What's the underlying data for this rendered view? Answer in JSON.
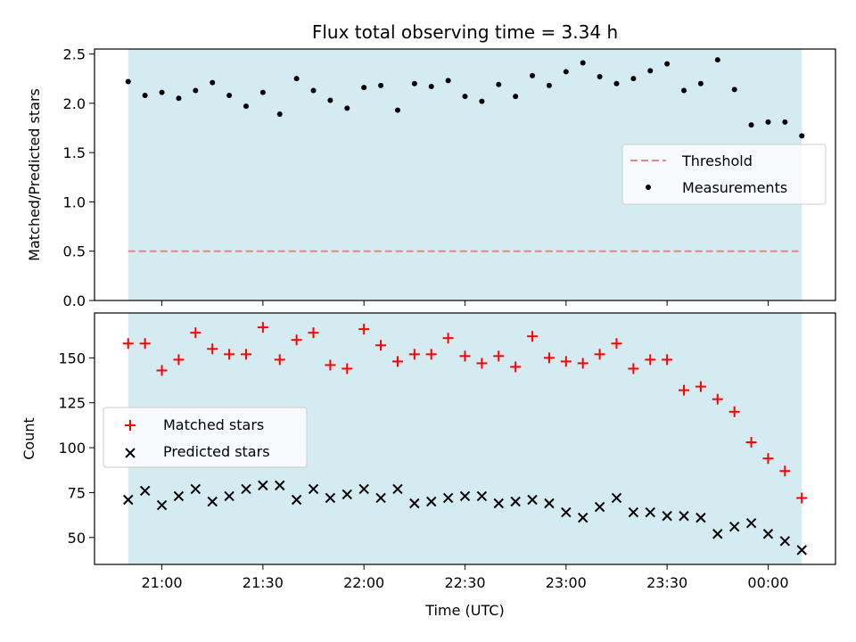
{
  "chart_data": [
    {
      "type": "scatter",
      "title": "Flux total observing time = 3.34 h",
      "ylabel": "Matched/Predicted stars",
      "xlabel": "",
      "ylim": [
        0,
        2.55
      ],
      "yticks": [
        "0.0",
        "0.5",
        "1.0",
        "1.5",
        "2.0",
        "2.5"
      ],
      "shaded_span": [
        "20:50",
        "00:10"
      ],
      "shade_color": "#add8e6",
      "threshold": {
        "name": "Threshold",
        "value": 0.5,
        "color": "#f08080",
        "style": "dashed"
      },
      "legend_position": "center-right",
      "series": [
        {
          "name": "Measurements",
          "color": "#000000",
          "marker": "dot",
          "x": [
            "20:50",
            "20:55",
            "21:00",
            "21:05",
            "21:10",
            "21:15",
            "21:20",
            "21:25",
            "21:30",
            "21:35",
            "21:40",
            "21:45",
            "21:50",
            "21:55",
            "22:00",
            "22:05",
            "22:10",
            "22:15",
            "22:20",
            "22:25",
            "22:30",
            "22:35",
            "22:40",
            "22:45",
            "22:50",
            "22:55",
            "23:00",
            "23:05",
            "23:10",
            "23:15",
            "23:20",
            "23:25",
            "23:30",
            "23:35",
            "23:40",
            "23:45",
            "23:50",
            "23:55",
            "00:00",
            "00:05",
            "00:10"
          ],
          "values": [
            2.22,
            2.08,
            2.11,
            2.05,
            2.13,
            2.21,
            2.08,
            1.97,
            2.11,
            1.89,
            2.25,
            2.13,
            2.03,
            1.95,
            2.16,
            2.18,
            1.93,
            2.2,
            2.17,
            2.23,
            2.07,
            2.02,
            2.19,
            2.07,
            2.28,
            2.18,
            2.32,
            2.41,
            2.27,
            2.2,
            2.25,
            2.33,
            2.4,
            2.13,
            2.2,
            2.44,
            2.14,
            1.78,
            1.81,
            1.81,
            1.67
          ]
        }
      ]
    },
    {
      "type": "scatter",
      "title": "",
      "ylabel": "Count",
      "xlabel": "Time (UTC)",
      "ylim": [
        35,
        175
      ],
      "yticks": [
        "50",
        "75",
        "100",
        "125",
        "150"
      ],
      "xticks": [
        "21:00",
        "21:30",
        "22:00",
        "22:30",
        "23:00",
        "23:30",
        "00:00"
      ],
      "shaded_span": [
        "20:50",
        "00:10"
      ],
      "shade_color": "#add8e6",
      "legend_position": "center-left",
      "series": [
        {
          "name": "Matched stars",
          "color": "#ff0000",
          "marker": "plus",
          "x": [
            "20:50",
            "20:55",
            "21:00",
            "21:05",
            "21:10",
            "21:15",
            "21:20",
            "21:25",
            "21:30",
            "21:35",
            "21:40",
            "21:45",
            "21:50",
            "21:55",
            "22:00",
            "22:05",
            "22:10",
            "22:15",
            "22:20",
            "22:25",
            "22:30",
            "22:35",
            "22:40",
            "22:45",
            "22:50",
            "22:55",
            "23:00",
            "23:05",
            "23:10",
            "23:15",
            "23:20",
            "23:25",
            "23:30",
            "23:35",
            "23:40",
            "23:45",
            "23:50",
            "23:55",
            "00:00",
            "00:05",
            "00:10"
          ],
          "values": [
            158,
            158,
            143,
            149,
            164,
            155,
            152,
            152,
            167,
            149,
            160,
            164,
            146,
            144,
            166,
            157,
            148,
            152,
            152,
            161,
            151,
            147,
            151,
            145,
            162,
            150,
            148,
            147,
            152,
            158,
            144,
            149,
            149,
            132,
            134,
            127,
            120,
            103,
            94,
            87,
            72
          ]
        },
        {
          "name": "Predicted stars",
          "color": "#000000",
          "marker": "x",
          "x": [
            "20:50",
            "20:55",
            "21:00",
            "21:05",
            "21:10",
            "21:15",
            "21:20",
            "21:25",
            "21:30",
            "21:35",
            "21:40",
            "21:45",
            "21:50",
            "21:55",
            "22:00",
            "22:05",
            "22:10",
            "22:15",
            "22:20",
            "22:25",
            "22:30",
            "22:35",
            "22:40",
            "22:45",
            "22:50",
            "22:55",
            "23:00",
            "23:05",
            "23:10",
            "23:15",
            "23:20",
            "23:25",
            "23:30",
            "23:35",
            "23:40",
            "23:45",
            "23:50",
            "23:55",
            "00:00",
            "00:05",
            "00:10"
          ],
          "values": [
            71,
            76,
            68,
            73,
            77,
            70,
            73,
            77,
            79,
            79,
            71,
            77,
            72,
            74,
            77,
            72,
            77,
            69,
            70,
            72,
            73,
            73,
            69,
            70,
            71,
            69,
            64,
            61,
            67,
            72,
            64,
            64,
            62,
            62,
            61,
            52,
            56,
            58,
            52,
            48,
            43
          ]
        }
      ]
    }
  ]
}
